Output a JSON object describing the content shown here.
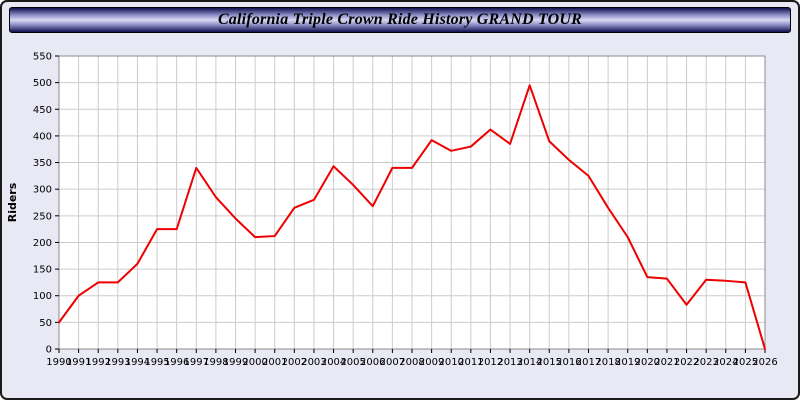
{
  "title": "California Triple Crown Ride History GRAND TOUR",
  "chart_data": {
    "type": "line",
    "title": "California Triple Crown Ride History GRAND TOUR",
    "xlabel": "",
    "ylabel": "Riders",
    "ylim": [
      0,
      550
    ],
    "ytick_step": 50,
    "grid": true,
    "legend": "none",
    "plot_bg": "#ffffff",
    "grid_color": "#cccccc",
    "x": [
      1990,
      1991,
      1992,
      1993,
      1994,
      1995,
      1996,
      1997,
      1998,
      1999,
      2000,
      2001,
      2002,
      2003,
      2004,
      2005,
      2006,
      2007,
      2008,
      2009,
      2010,
      2011,
      2012,
      2013,
      2014,
      2015,
      2016,
      2017,
      2018,
      2019,
      2020,
      2021,
      2022,
      2023,
      2024,
      2025,
      2026
    ],
    "series": [
      {
        "name": "Riders",
        "color": "#ee0000",
        "values": [
          50,
          100,
          125,
          125,
          160,
          225,
          225,
          340,
          285,
          245,
          210,
          212,
          265,
          280,
          343,
          308,
          268,
          340,
          340,
          392,
          372,
          380,
          412,
          385,
          495,
          390,
          355,
          325,
          265,
          210,
          135,
          132,
          83,
          130,
          128,
          125,
          0
        ]
      }
    ]
  }
}
